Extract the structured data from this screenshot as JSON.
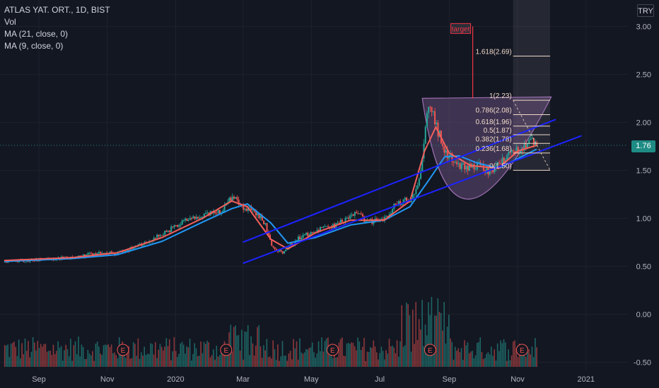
{
  "legend": {
    "symbol": "ATLAS YAT. ORT., 1D, BIST",
    "vol": "Vol",
    "ma21": "MA (21, close, 0)",
    "ma9": "MA (9, close, 0)"
  },
  "currency": "TRY",
  "last_price": "1.76",
  "colors": {
    "background": "#131722",
    "up": "#26a69a",
    "down": "#ef5350",
    "ma21": "#2196f3",
    "ma9": "#f25f5c",
    "channel": "#1c23ff",
    "fib": "#f0d9c8",
    "cup": "#9c6fb0",
    "price_tag": "#1e8c84",
    "target": "#f23645",
    "axis_text": "#b2b5be"
  },
  "annotations": {
    "target_label": "target",
    "fib_levels": [
      "1.618(2.69)",
      "1(2.23)",
      "0.786(2.08)",
      "0.618(1.96)",
      "0.5(1.87)",
      "0.382(1.78)",
      "0.236(1.68)",
      "0(1.50)"
    ],
    "earnings_marker": "E"
  },
  "chart_data": {
    "type": "candlestick",
    "title": "ATLAS YAT. ORT., 1D, BIST",
    "x_ticks": [
      "Sep",
      "Nov",
      "2020",
      "Mar",
      "May",
      "Jul",
      "Sep",
      "Nov",
      "2021"
    ],
    "y_ticks": [
      "3.00",
      "2.50",
      "2.00",
      "1.50",
      "1.00",
      "0.50",
      "0.00",
      "-0.50"
    ],
    "ylim": [
      -0.5,
      3.1
    ],
    "grid": true,
    "price_path": [
      [
        "2019-08-01",
        0.55
      ],
      [
        "2019-08-20",
        0.56
      ],
      [
        "2019-09-05",
        0.57
      ],
      [
        "2019-10-01",
        0.59
      ],
      [
        "2019-10-20",
        0.63
      ],
      [
        "2019-11-10",
        0.64
      ],
      [
        "2019-12-01",
        0.72
      ],
      [
        "2019-12-20",
        0.84
      ],
      [
        "2020-01-10",
        0.98
      ],
      [
        "2020-01-25",
        1.02
      ],
      [
        "2020-02-10",
        1.08
      ],
      [
        "2020-02-20",
        1.24
      ],
      [
        "2020-03-01",
        1.12
      ],
      [
        "2020-03-12",
        1.06
      ],
      [
        "2020-03-20",
        0.95
      ],
      [
        "2020-03-26",
        0.7
      ],
      [
        "2020-04-05",
        0.65
      ],
      [
        "2020-04-20",
        0.8
      ],
      [
        "2020-05-05",
        0.87
      ],
      [
        "2020-05-20",
        0.92
      ],
      [
        "2020-06-10",
        1.05
      ],
      [
        "2020-06-20",
        0.96
      ],
      [
        "2020-07-05",
        0.99
      ],
      [
        "2020-07-15",
        1.15
      ],
      [
        "2020-07-28",
        1.2
      ],
      [
        "2020-08-05",
        1.4
      ],
      [
        "2020-08-10",
        1.95
      ],
      [
        "2020-08-14",
        2.2
      ],
      [
        "2020-08-20",
        1.95
      ],
      [
        "2020-08-28",
        1.7
      ],
      [
        "2020-09-05",
        1.58
      ],
      [
        "2020-09-15",
        1.52
      ],
      [
        "2020-09-25",
        1.55
      ],
      [
        "2020-10-05",
        1.5
      ],
      [
        "2020-10-15",
        1.55
      ],
      [
        "2020-10-25",
        1.68
      ],
      [
        "2020-11-01",
        1.72
      ],
      [
        "2020-11-10",
        1.8
      ],
      [
        "2020-11-18",
        1.76
      ]
    ],
    "ma21_points": [
      [
        "2019-08-01",
        0.55
      ],
      [
        "2019-10-01",
        0.58
      ],
      [
        "2019-11-10",
        0.62
      ],
      [
        "2019-12-20",
        0.76
      ],
      [
        "2020-01-25",
        0.96
      ],
      [
        "2020-02-20",
        1.1
      ],
      [
        "2020-03-05",
        1.15
      ],
      [
        "2020-03-26",
        0.95
      ],
      [
        "2020-04-10",
        0.74
      ],
      [
        "2020-05-05",
        0.8
      ],
      [
        "2020-06-05",
        0.93
      ],
      [
        "2020-07-05",
        0.98
      ],
      [
        "2020-07-28",
        1.12
      ],
      [
        "2020-08-14",
        1.4
      ],
      [
        "2020-08-28",
        1.64
      ],
      [
        "2020-09-10",
        1.65
      ],
      [
        "2020-09-25",
        1.58
      ],
      [
        "2020-10-15",
        1.52
      ],
      [
        "2020-11-01",
        1.62
      ],
      [
        "2020-11-18",
        1.72
      ]
    ],
    "ma9_points": [
      [
        "2019-08-01",
        0.56
      ],
      [
        "2019-10-01",
        0.59
      ],
      [
        "2019-11-10",
        0.64
      ],
      [
        "2019-12-20",
        0.8
      ],
      [
        "2020-01-25",
        1.0
      ],
      [
        "2020-02-20",
        1.18
      ],
      [
        "2020-03-05",
        1.12
      ],
      [
        "2020-03-26",
        0.78
      ],
      [
        "2020-04-10",
        0.68
      ],
      [
        "2020-05-05",
        0.85
      ],
      [
        "2020-06-05",
        0.98
      ],
      [
        "2020-07-05",
        0.98
      ],
      [
        "2020-07-28",
        1.18
      ],
      [
        "2020-08-10",
        1.7
      ],
      [
        "2020-08-20",
        1.95
      ],
      [
        "2020-09-01",
        1.68
      ],
      [
        "2020-09-20",
        1.55
      ],
      [
        "2020-10-15",
        1.52
      ],
      [
        "2020-11-01",
        1.7
      ],
      [
        "2020-11-18",
        1.76
      ]
    ],
    "channel_upper": [
      [
        "2020-03-01",
        0.75
      ],
      [
        "2020-12-05",
        2.03
      ]
    ],
    "channel_lower": [
      [
        "2020-03-01",
        0.53
      ],
      [
        "2020-12-28",
        1.86
      ]
    ],
    "fib": {
      "x_start": "2020-10-28",
      "x_end": "2020-11-30",
      "levels": [
        1.5,
        1.68,
        1.78,
        1.87,
        1.96,
        2.08,
        2.23,
        2.69
      ]
    },
    "target": {
      "x": "2020-09-22",
      "y_from": 2.25,
      "y_to": 3.0
    },
    "earnings_dates": [
      "2019-11-15",
      "2020-02-15",
      "2020-05-20",
      "2020-08-15",
      "2020-11-05"
    ]
  }
}
